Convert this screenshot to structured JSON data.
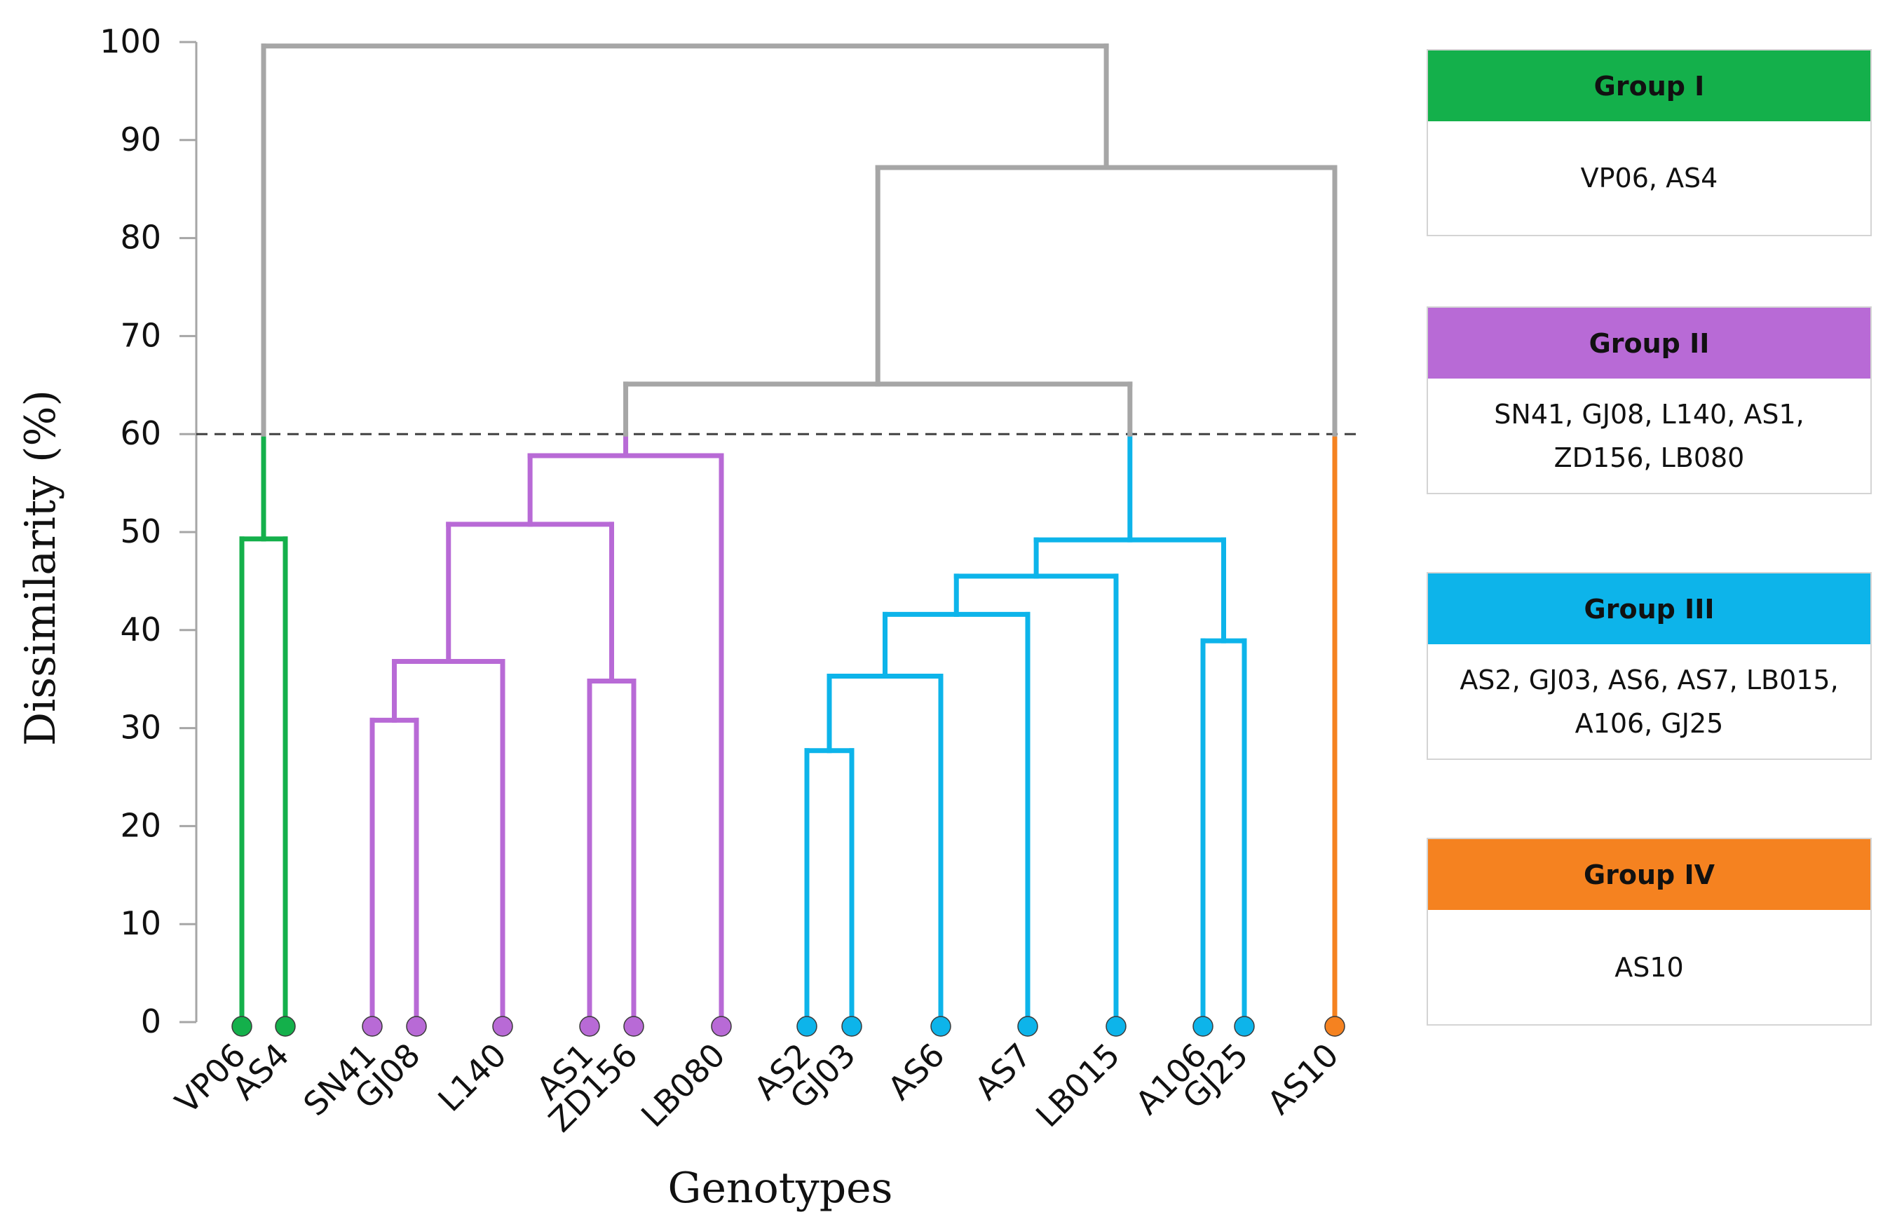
{
  "chart_data": {
    "type": "dendrogram",
    "xlabel": "Genotypes",
    "ylabel": "Dissimilarity (%)",
    "ylim": [
      0,
      100
    ],
    "yticks": [
      "0",
      "10",
      "20",
      "30",
      "40",
      "50",
      "60",
      "70",
      "80",
      "90",
      "100"
    ],
    "cutoff": 60,
    "leaves": [
      {
        "label": "VP06",
        "group": "I"
      },
      {
        "label": "AS4",
        "group": "I"
      },
      {
        "label": "SN41",
        "group": "II"
      },
      {
        "label": "GJ08",
        "group": "II"
      },
      {
        "label": "L140",
        "group": "II"
      },
      {
        "label": "AS1",
        "group": "II"
      },
      {
        "label": "ZD156",
        "group": "II"
      },
      {
        "label": "LB080",
        "group": "II"
      },
      {
        "label": "AS2",
        "group": "III"
      },
      {
        "label": "GJ03",
        "group": "III"
      },
      {
        "label": "AS6",
        "group": "III"
      },
      {
        "label": "AS7",
        "group": "III"
      },
      {
        "label": "LB015",
        "group": "III"
      },
      {
        "label": "A106",
        "group": "III"
      },
      {
        "label": "GJ25",
        "group": "III"
      },
      {
        "label": "AS10",
        "group": "IV"
      }
    ],
    "merges": [
      {
        "id": "m1",
        "left": "VP06",
        "right": "AS4",
        "height": 49.3,
        "color": "green"
      },
      {
        "id": "m2",
        "left": "SN41",
        "right": "GJ08",
        "height": 30.8,
        "color": "purple"
      },
      {
        "id": "m3",
        "left": "m2",
        "right": "L140",
        "height": 36.8,
        "color": "purple"
      },
      {
        "id": "m4",
        "left": "AS1",
        "right": "ZD156",
        "height": 34.8,
        "color": "purple"
      },
      {
        "id": "m5",
        "left": "m3",
        "right": "m4",
        "height": 50.8,
        "color": "purple"
      },
      {
        "id": "m6",
        "left": "m5",
        "right": "LB080",
        "height": 57.8,
        "color": "purple"
      },
      {
        "id": "m7",
        "left": "AS2",
        "right": "GJ03",
        "height": 27.7,
        "color": "blue"
      },
      {
        "id": "m8",
        "left": "m7",
        "right": "AS6",
        "height": 35.3,
        "color": "blue"
      },
      {
        "id": "m9",
        "left": "m8",
        "right": "AS7",
        "height": 41.6,
        "color": "blue"
      },
      {
        "id": "m10",
        "left": "m9",
        "right": "LB015",
        "height": 45.5,
        "color": "blue"
      },
      {
        "id": "m11",
        "left": "A106",
        "right": "GJ25",
        "height": 38.9,
        "color": "blue"
      },
      {
        "id": "m12",
        "left": "m10",
        "right": "m11",
        "height": 49.2,
        "color": "blue"
      },
      {
        "id": "m13",
        "left": "m6",
        "right": "m12",
        "height": 65.1,
        "color": "gray"
      },
      {
        "id": "m14",
        "left": "m13",
        "right": "AS10",
        "height": 87.2,
        "color": "gray"
      },
      {
        "id": "m15",
        "left": "m1",
        "right": "m14",
        "height": 99.6,
        "color": "gray"
      }
    ]
  },
  "colors": {
    "green": "#14b04b",
    "purple": "#b86ad6",
    "blue": "#0db4ea",
    "orange": "#f58220",
    "gray": "#a6a6a6",
    "cutoff": "#404040"
  },
  "legend": [
    {
      "title": "Group I",
      "color": "#14b04b",
      "lines": [
        "VP06, AS4"
      ]
    },
    {
      "title": "Group II",
      "color": "#b86ad6",
      "lines": [
        "SN41, GJ08, L140, AS1,",
        "ZD156, LB080"
      ]
    },
    {
      "title": "Group III",
      "color": "#0db4ea",
      "lines": [
        "AS2, GJ03, AS6, AS7, LB015,",
        "A106, GJ25"
      ]
    },
    {
      "title": "Group IV",
      "color": "#f58220",
      "lines": [
        "AS10"
      ]
    }
  ]
}
